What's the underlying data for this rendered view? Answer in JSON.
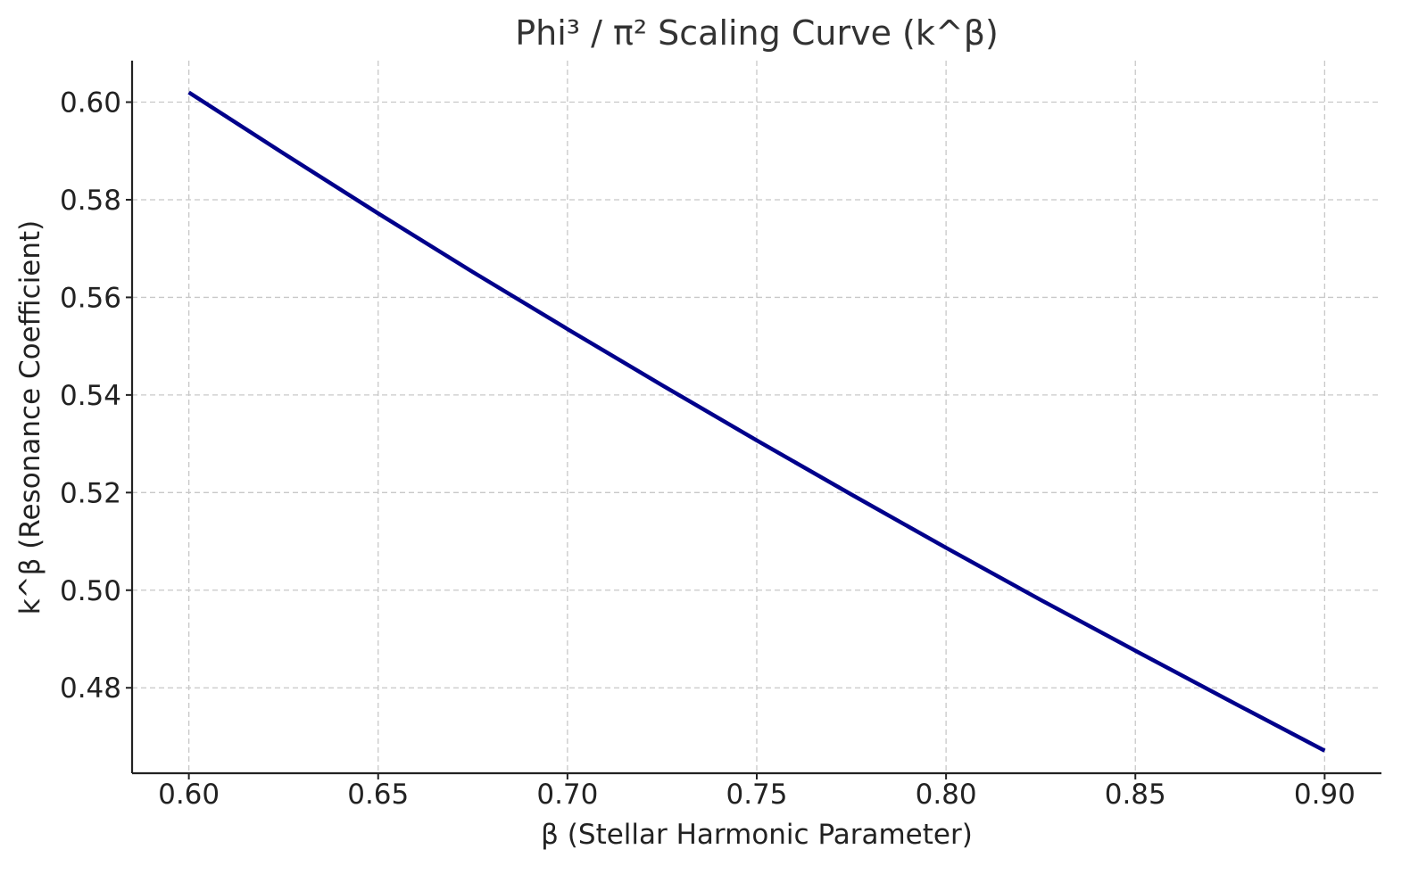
{
  "chart_data": {
    "type": "line",
    "title": "Phi³ / π² Scaling Curve (k^β)",
    "xlabel": "β (Stellar Harmonic Parameter)",
    "ylabel": "k^β (Resonance Coefficient)",
    "xlim": [
      0.585,
      0.915
    ],
    "ylim": [
      0.4625,
      0.6085
    ],
    "xticks": [
      0.6,
      0.65,
      0.7,
      0.75,
      0.8,
      0.85,
      0.9
    ],
    "xtick_labels": [
      "0.60",
      "0.65",
      "0.70",
      "0.75",
      "0.80",
      "0.85",
      "0.90"
    ],
    "yticks": [
      0.48,
      0.5,
      0.52,
      0.54,
      0.56,
      0.58,
      0.6
    ],
    "ytick_labels": [
      "0.48",
      "0.50",
      "0.52",
      "0.54",
      "0.56",
      "0.58",
      "0.60"
    ],
    "grid": true,
    "series": [
      {
        "color": "#00008b",
        "x": [
          0.6,
          0.625,
          0.65,
          0.675,
          0.7,
          0.725,
          0.75,
          0.775,
          0.8,
          0.825,
          0.85,
          0.875,
          0.9
        ],
        "y": [
          0.602,
          0.5895,
          0.5772,
          0.5652,
          0.5535,
          0.542,
          0.5307,
          0.5196,
          0.5087,
          0.498,
          0.4876,
          0.4773,
          0.4671
        ]
      }
    ]
  }
}
